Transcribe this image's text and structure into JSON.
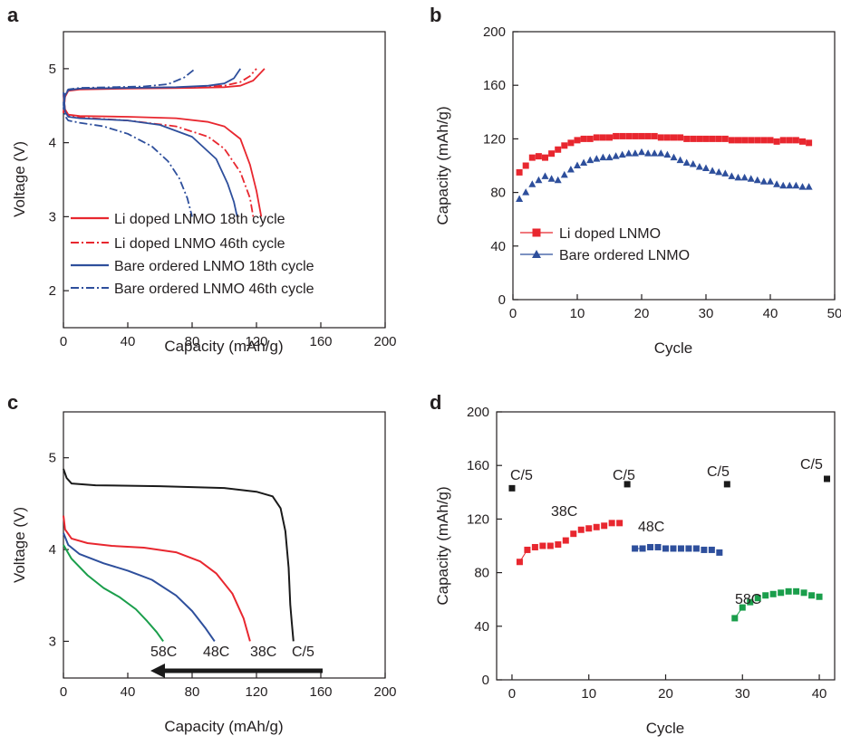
{
  "chart_data": [
    {
      "panel": "a",
      "type": "line",
      "xlabel": "Capacity (mAh/g)",
      "ylabel": "Voltage (V)",
      "xlim": [
        0,
        200
      ],
      "ylim": [
        1.5,
        5.5
      ],
      "xticks": [
        "0",
        "40",
        "80",
        "120",
        "160",
        "200"
      ],
      "yticks": [
        "2",
        "3",
        "4",
        "5"
      ],
      "legend_position": "lower-left",
      "series": [
        {
          "name": "Li doped LNMO 18th cycle",
          "color": "#e8272f",
          "dash": "solid",
          "charge": [
            [
              0,
              4.4
            ],
            [
              1,
              4.62
            ],
            [
              3,
              4.7
            ],
            [
              10,
              4.72
            ],
            [
              40,
              4.73
            ],
            [
              80,
              4.74
            ],
            [
              100,
              4.75
            ],
            [
              110,
              4.77
            ],
            [
              118,
              4.84
            ],
            [
              122,
              4.93
            ],
            [
              125,
              5.0
            ]
          ],
          "discharge": [
            [
              0,
              4.66
            ],
            [
              1,
              4.45
            ],
            [
              3,
              4.38
            ],
            [
              10,
              4.36
            ],
            [
              40,
              4.35
            ],
            [
              70,
              4.33
            ],
            [
              90,
              4.28
            ],
            [
              100,
              4.22
            ],
            [
              110,
              4.05
            ],
            [
              116,
              3.7
            ],
            [
              120,
              3.35
            ],
            [
              123,
              3.0
            ]
          ]
        },
        {
          "name": "Li doped LNMO 46th cycle",
          "color": "#e8272f",
          "dash": "dashdot",
          "charge": [
            [
              0,
              4.4
            ],
            [
              1,
              4.63
            ],
            [
              3,
              4.71
            ],
            [
              10,
              4.73
            ],
            [
              40,
              4.74
            ],
            [
              80,
              4.75
            ],
            [
              100,
              4.77
            ],
            [
              110,
              4.82
            ],
            [
              116,
              4.9
            ],
            [
              120,
              5.0
            ]
          ],
          "discharge": [
            [
              0,
              4.64
            ],
            [
              1,
              4.42
            ],
            [
              3,
              4.36
            ],
            [
              10,
              4.34
            ],
            [
              40,
              4.3
            ],
            [
              70,
              4.22
            ],
            [
              90,
              4.08
            ],
            [
              100,
              3.92
            ],
            [
              110,
              3.6
            ],
            [
              116,
              3.25
            ],
            [
              118,
              3.0
            ]
          ]
        },
        {
          "name": "Bare ordered LNMO 18th cycle",
          "color": "#2e4f9c",
          "dash": "solid",
          "charge": [
            [
              0,
              4.45
            ],
            [
              1,
              4.64
            ],
            [
              3,
              4.71
            ],
            [
              10,
              4.73
            ],
            [
              40,
              4.74
            ],
            [
              70,
              4.75
            ],
            [
              90,
              4.77
            ],
            [
              100,
              4.8
            ],
            [
              106,
              4.87
            ],
            [
              110,
              5.0
            ]
          ],
          "discharge": [
            [
              0,
              4.68
            ],
            [
              1,
              4.42
            ],
            [
              3,
              4.35
            ],
            [
              10,
              4.33
            ],
            [
              40,
              4.3
            ],
            [
              60,
              4.24
            ],
            [
              80,
              4.08
            ],
            [
              95,
              3.78
            ],
            [
              102,
              3.45
            ],
            [
              106,
              3.2
            ],
            [
              108,
              3.0
            ]
          ]
        },
        {
          "name": "Bare ordered LNMO 46th cycle",
          "color": "#2e4f9c",
          "dash": "dashdot",
          "charge": [
            [
              0,
              4.5
            ],
            [
              1,
              4.66
            ],
            [
              3,
              4.72
            ],
            [
              10,
              4.74
            ],
            [
              30,
              4.75
            ],
            [
              50,
              4.76
            ],
            [
              65,
              4.79
            ],
            [
              75,
              4.88
            ],
            [
              82,
              5.0
            ]
          ],
          "discharge": [
            [
              0,
              4.55
            ],
            [
              1,
              4.36
            ],
            [
              3,
              4.3
            ],
            [
              10,
              4.27
            ],
            [
              25,
              4.22
            ],
            [
              40,
              4.12
            ],
            [
              55,
              3.95
            ],
            [
              65,
              3.75
            ],
            [
              72,
              3.52
            ],
            [
              77,
              3.25
            ],
            [
              80,
              3.0
            ]
          ]
        }
      ]
    },
    {
      "panel": "b",
      "type": "scatter",
      "xlabel": "Cycle",
      "ylabel": "Capacity (mAh/g)",
      "xlim": [
        0,
        50
      ],
      "ylim": [
        0,
        200
      ],
      "xticks": [
        "0",
        "10",
        "20",
        "30",
        "40",
        "50"
      ],
      "yticks": [
        "0",
        "40",
        "80",
        "120",
        "160",
        "200"
      ],
      "legend_position": "lower-left",
      "series": [
        {
          "name": "Li doped LNMO",
          "color": "#e8272f",
          "marker": "square",
          "x": [
            1,
            2,
            3,
            4,
            5,
            6,
            7,
            8,
            9,
            10,
            11,
            12,
            13,
            14,
            15,
            16,
            17,
            18,
            19,
            20,
            21,
            22,
            23,
            24,
            25,
            26,
            27,
            28,
            29,
            30,
            31,
            32,
            33,
            34,
            35,
            36,
            37,
            38,
            39,
            40,
            41,
            42,
            43,
            44,
            45,
            46
          ],
          "y": [
            95,
            100,
            106,
            107,
            106,
            109,
            112,
            115,
            117,
            119,
            120,
            120,
            121,
            121,
            121,
            122,
            122,
            122,
            122,
            122,
            122,
            122,
            121,
            121,
            121,
            121,
            120,
            120,
            120,
            120,
            120,
            120,
            120,
            119,
            119,
            119,
            119,
            119,
            119,
            119,
            118,
            119,
            119,
            119,
            118,
            117
          ]
        },
        {
          "name": "Bare ordered LNMO",
          "color": "#2e4f9c",
          "marker": "triangle",
          "x": [
            1,
            2,
            3,
            4,
            5,
            6,
            7,
            8,
            9,
            10,
            11,
            12,
            13,
            14,
            15,
            16,
            17,
            18,
            19,
            20,
            21,
            22,
            23,
            24,
            25,
            26,
            27,
            28,
            29,
            30,
            31,
            32,
            33,
            34,
            35,
            36,
            37,
            38,
            39,
            40,
            41,
            42,
            43,
            44,
            45,
            46
          ],
          "y": [
            75,
            80,
            86,
            89,
            92,
            90,
            89,
            93,
            97,
            100,
            102,
            104,
            105,
            106,
            106,
            107,
            108,
            109,
            109,
            110,
            109,
            109,
            109,
            108,
            106,
            104,
            102,
            101,
            99,
            98,
            96,
            95,
            94,
            92,
            91,
            91,
            90,
            89,
            88,
            88,
            86,
            85,
            85,
            85,
            84,
            84
          ]
        }
      ]
    },
    {
      "panel": "c",
      "type": "line",
      "xlabel": "Capacity (mAh/g)",
      "ylabel": "Voltage (V)",
      "xlim": [
        0,
        200
      ],
      "ylim": [
        2.6,
        5.5
      ],
      "xticks": [
        "0",
        "40",
        "80",
        "120",
        "160",
        "200"
      ],
      "yticks": [
        "3",
        "4",
        "5"
      ],
      "series": [
        {
          "name": "C/5",
          "color": "#1a1a1a",
          "points": [
            [
              0,
              4.88
            ],
            [
              2,
              4.78
            ],
            [
              5,
              4.72
            ],
            [
              20,
              4.7
            ],
            [
              60,
              4.69
            ],
            [
              100,
              4.67
            ],
            [
              120,
              4.63
            ],
            [
              130,
              4.58
            ],
            [
              135,
              4.45
            ],
            [
              138,
              4.2
            ],
            [
              140,
              3.8
            ],
            [
              141,
              3.4
            ],
            [
              142,
              3.2
            ],
            [
              143,
              3.0
            ]
          ]
        },
        {
          "name": "38C",
          "color": "#e8272f",
          "points": [
            [
              0,
              4.37
            ],
            [
              1,
              4.22
            ],
            [
              5,
              4.12
            ],
            [
              15,
              4.07
            ],
            [
              30,
              4.04
            ],
            [
              50,
              4.02
            ],
            [
              70,
              3.97
            ],
            [
              85,
              3.87
            ],
            [
              95,
              3.74
            ],
            [
              105,
              3.52
            ],
            [
              112,
              3.25
            ],
            [
              116,
              3.0
            ]
          ]
        },
        {
          "name": "48C",
          "color": "#2e4f9c",
          "points": [
            [
              0,
              4.18
            ],
            [
              3,
              4.05
            ],
            [
              10,
              3.95
            ],
            [
              25,
              3.85
            ],
            [
              40,
              3.77
            ],
            [
              55,
              3.67
            ],
            [
              70,
              3.5
            ],
            [
              80,
              3.33
            ],
            [
              88,
              3.15
            ],
            [
              94,
              3.0
            ]
          ]
        },
        {
          "name": "58C",
          "color": "#1a9e4b",
          "points": [
            [
              0,
              4.05
            ],
            [
              5,
              3.9
            ],
            [
              15,
              3.72
            ],
            [
              25,
              3.58
            ],
            [
              35,
              3.48
            ],
            [
              45,
              3.35
            ],
            [
              52,
              3.22
            ],
            [
              58,
              3.1
            ],
            [
              62,
              3.0
            ]
          ]
        }
      ],
      "annotations": [
        "58C",
        "48C",
        "38C",
        "C/5"
      ]
    },
    {
      "panel": "d",
      "type": "scatter",
      "xlabel": "Cycle",
      "ylabel": "Capacity (mAh/g)",
      "xlim": [
        -2,
        42
      ],
      "ylim": [
        0,
        200
      ],
      "xticks": [
        "0",
        "10",
        "20",
        "30",
        "40"
      ],
      "yticks": [
        "0",
        "40",
        "80",
        "120",
        "160",
        "200"
      ],
      "series": [
        {
          "name": "C/5",
          "color": "#1a1a1a",
          "x": [
            0,
            15,
            28,
            41
          ],
          "y": [
            143,
            146,
            146,
            150
          ]
        },
        {
          "name": "38C",
          "color": "#e8272f",
          "x": [
            1,
            2,
            3,
            4,
            5,
            6,
            7,
            8,
            9,
            10,
            11,
            12,
            13,
            14
          ],
          "y": [
            88,
            97,
            99,
            100,
            100,
            101,
            104,
            109,
            112,
            113,
            114,
            115,
            117,
            117
          ]
        },
        {
          "name": "48C",
          "color": "#2e4f9c",
          "x": [
            16,
            17,
            18,
            19,
            20,
            21,
            22,
            23,
            24,
            25,
            26,
            27
          ],
          "y": [
            98,
            98,
            99,
            99,
            98,
            98,
            98,
            98,
            98,
            97,
            97,
            95
          ]
        },
        {
          "name": "58C",
          "color": "#1a9e4b",
          "x": [
            29,
            30,
            31,
            32,
            33,
            34,
            35,
            36,
            37,
            38,
            39,
            40
          ],
          "y": [
            46,
            54,
            58,
            61,
            63,
            64,
            65,
            66,
            66,
            65,
            63,
            62
          ]
        }
      ],
      "annotations": [
        "C/5",
        "C/5",
        "C/5",
        "C/5",
        "38C",
        "48C",
        "58C"
      ]
    }
  ]
}
